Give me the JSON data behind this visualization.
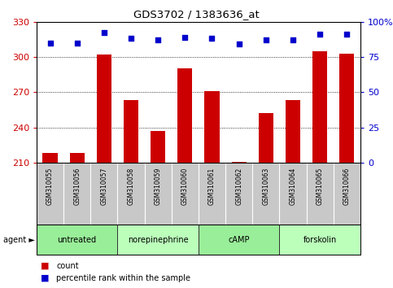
{
  "title": "GDS3702 / 1383636_at",
  "samples": [
    "GSM310055",
    "GSM310056",
    "GSM310057",
    "GSM310058",
    "GSM310059",
    "GSM310060",
    "GSM310061",
    "GSM310062",
    "GSM310063",
    "GSM310064",
    "GSM310065",
    "GSM310066"
  ],
  "counts": [
    218,
    218,
    302,
    263,
    237,
    290,
    271,
    211,
    252,
    263,
    305,
    303
  ],
  "percentile_ranks": [
    85,
    85,
    92,
    88,
    87,
    89,
    88,
    84,
    87,
    87,
    91,
    91
  ],
  "ylim_left": [
    210,
    330
  ],
  "ylim_right": [
    0,
    100
  ],
  "yticks_left": [
    210,
    240,
    270,
    300,
    330
  ],
  "yticks_right": [
    0,
    25,
    50,
    75,
    100
  ],
  "bar_color": "#cc0000",
  "dot_color": "#0000cc",
  "agent_groups": [
    {
      "label": "untreated",
      "start": 0,
      "end": 3,
      "color": "#99ee99"
    },
    {
      "label": "norepinephrine",
      "start": 3,
      "end": 6,
      "color": "#bbffbb"
    },
    {
      "label": "cAMP",
      "start": 6,
      "end": 9,
      "color": "#99ee99"
    },
    {
      "label": "forskolin",
      "start": 9,
      "end": 12,
      "color": "#bbffbb"
    }
  ],
  "agent_label": "agent",
  "legend_count_label": "count",
  "legend_percentile_label": "percentile rank within the sample",
  "bar_width": 0.55,
  "background_color": "#ffffff",
  "plot_bg_color": "#ffffff",
  "tick_area_color": "#c8c8c8",
  "grid_color": "#000000",
  "left_axis_color": "#cc0000",
  "right_axis_color": "#0000cc"
}
